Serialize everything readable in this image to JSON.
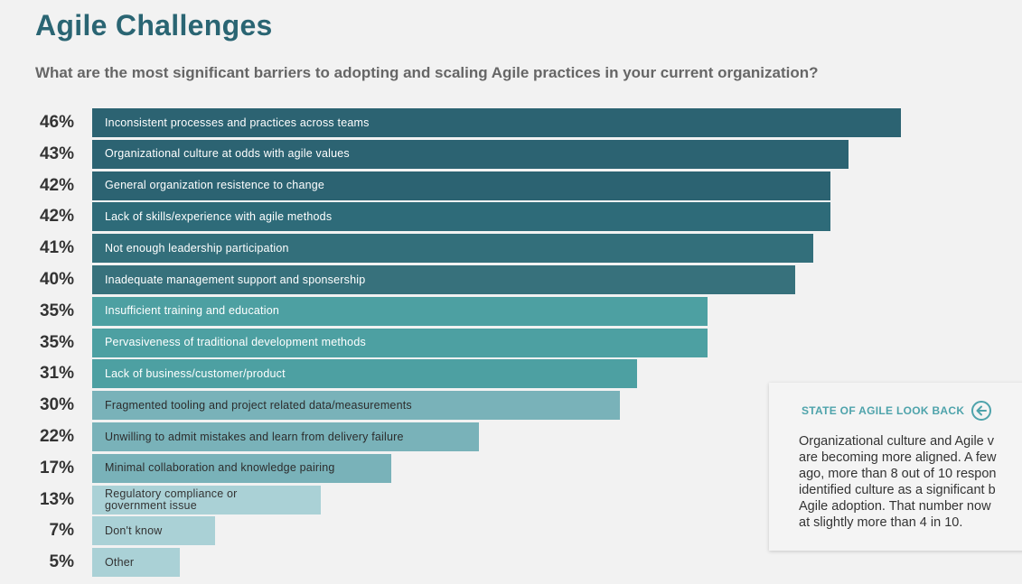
{
  "header": {
    "title": "Agile Challenges",
    "subtitle": "What are the most significant barriers to adopting and scaling Agile practices in your current organization?"
  },
  "chart_data": {
    "type": "bar",
    "orientation": "horizontal",
    "categories": [
      "Inconsistent processes and practices across teams",
      "Organizational culture at odds with agile values",
      "General organization resistence to change",
      "Lack of skills/experience with agile methods",
      "Not enough leadership participation",
      "Inadequate management support and sponsership",
      "Insufficient training and education",
      "Pervasiveness of traditional development methods",
      "Lack of business/customer/product",
      "Fragmented tooling and project related data/measurements",
      "Unwilling to admit mistakes and learn from delivery failure",
      "Minimal collaboration and knowledge pairing",
      "Regulatory compliance or\ngovernment issue",
      "Don't know",
      "Other"
    ],
    "values": [
      46,
      43,
      42,
      42,
      41,
      40,
      35,
      35,
      31,
      30,
      22,
      17,
      13,
      7,
      5
    ],
    "value_labels": [
      "46%",
      "43%",
      "42%",
      "42%",
      "41%",
      "40%",
      "35%",
      "35%",
      "31%",
      "30%",
      "22%",
      "17%",
      "13%",
      "7%",
      "5%"
    ],
    "bar_colors": [
      "#2c6372",
      "#2c6372",
      "#2c6372",
      "#2e6b79",
      "#336f7b",
      "#37717c",
      "#4da0a2",
      "#4da0a2",
      "#4da0a2",
      "#79b2b9",
      "#79b2b9",
      "#79b2b9",
      "#aad1d6",
      "#aad1d6",
      "#aad1d6"
    ],
    "xlim": [
      0,
      46
    ],
    "title": "",
    "xlabel": "",
    "ylabel": ""
  },
  "lookback": {
    "title": "STATE OF AGILE LOOK BACK",
    "icon": "arrow-left-circle-icon",
    "lines": [
      "Organizational culture and Agile v",
      "are becoming more aligned. A few",
      "ago, more than 8 out of 10 respon",
      "identified culture as a significant b",
      "Agile adoption. That number now",
      "at slightly more than 4 in 10."
    ]
  }
}
